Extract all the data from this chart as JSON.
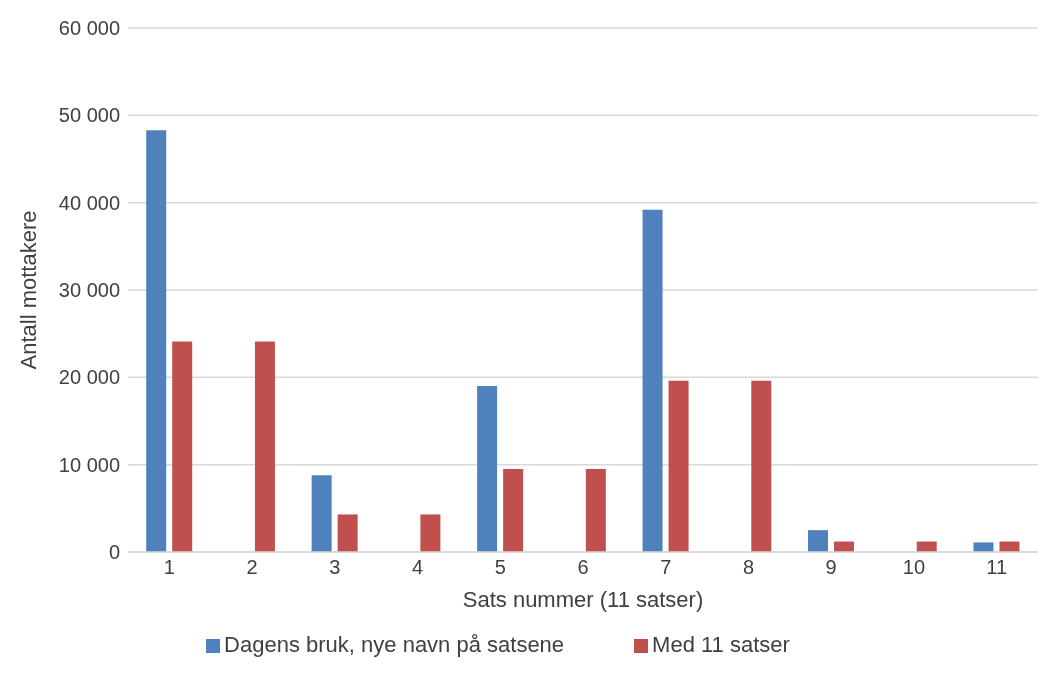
{
  "chart_data": {
    "type": "bar",
    "xlabel": "Sats nummer (11 satser)",
    "ylabel": "Antall mottakere",
    "categories": [
      "1",
      "2",
      "3",
      "4",
      "5",
      "6",
      "7",
      "8",
      "9",
      "10",
      "11"
    ],
    "series": [
      {
        "name": "Dagens bruk, nye navn på satsene",
        "color": "#4f81bd",
        "values": [
          48300,
          null,
          8800,
          null,
          19000,
          null,
          39200,
          null,
          2500,
          null,
          1100
        ]
      },
      {
        "name": "Med 11 satser",
        "color": "#c0504d",
        "values": [
          24100,
          24100,
          4300,
          4300,
          9500,
          9500,
          19600,
          19600,
          1200,
          1200,
          1200
        ]
      }
    ],
    "ylim": [
      0,
      60000
    ],
    "yticks": [
      {
        "value": 0,
        "label": "0"
      },
      {
        "value": 10000,
        "label": "10 000"
      },
      {
        "value": 20000,
        "label": "20 000"
      },
      {
        "value": 30000,
        "label": "30 000"
      },
      {
        "value": 40000,
        "label": "40 000"
      },
      {
        "value": 50000,
        "label": "50 000"
      },
      {
        "value": 60000,
        "label": "60 000"
      }
    ],
    "grid": "y",
    "legend": "bottom"
  }
}
